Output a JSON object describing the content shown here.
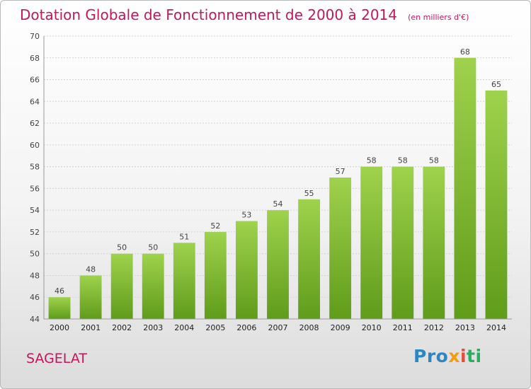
{
  "chart_data": {
    "type": "bar",
    "title": "Dotation Globale de Fonctionnement de 2000 à 2014",
    "subtitle": "(en milliers d'€)",
    "categories": [
      "2000",
      "2001",
      "2002",
      "2003",
      "2004",
      "2005",
      "2006",
      "2007",
      "2008",
      "2009",
      "2010",
      "2011",
      "2012",
      "2013",
      "2014"
    ],
    "values": [
      46,
      48,
      50,
      50,
      51,
      52,
      53,
      54,
      55,
      57,
      58,
      58,
      58,
      68,
      65
    ],
    "ylim": [
      44,
      70
    ],
    "yticks": [
      44,
      46,
      48,
      50,
      52,
      54,
      56,
      58,
      60,
      62,
      64,
      66,
      68,
      70
    ],
    "grid": true,
    "bar_color": "#7ab82e",
    "title_color": "#c2185b"
  },
  "commune": "SAGELAT",
  "logo": {
    "text": "Proxiti",
    "parts": [
      "Pro",
      "x",
      "i",
      "ti"
    ]
  }
}
